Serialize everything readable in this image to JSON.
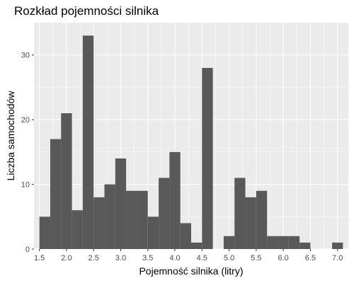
{
  "chart_data": {
    "type": "bar",
    "title": "Rozkład pojemności silnika",
    "xlabel": "Pojemność silnika (litry)",
    "ylabel": "Liczba samochodów",
    "xlim": [
      1.4,
      7.2
    ],
    "ylim": [
      0,
      35
    ],
    "grid": true,
    "bin_width": 0.2,
    "bins_start": [
      1.5,
      1.7,
      1.9,
      2.1,
      2.3,
      2.5,
      2.7,
      2.9,
      3.1,
      3.3,
      3.5,
      3.7,
      3.9,
      4.1,
      4.3,
      4.5,
      4.7,
      4.9,
      5.1,
      5.3,
      5.5,
      5.7,
      5.9,
      6.1,
      6.3,
      6.5,
      6.7,
      6.9
    ],
    "values": [
      5,
      17,
      21,
      6,
      33,
      8,
      10,
      14,
      9,
      9,
      5,
      11,
      15,
      4,
      1,
      28,
      0,
      2,
      11,
      8,
      9,
      2,
      2,
      2,
      1,
      0,
      0,
      1
    ],
    "x_ticks": [
      1.5,
      2.0,
      2.5,
      3.0,
      3.5,
      4.0,
      4.5,
      5.0,
      5.5,
      6.0,
      6.5,
      7.0
    ],
    "x_tick_labels": [
      "1.5",
      "2.0",
      "2.5",
      "3.0",
      "3.5",
      "4.0",
      "4.5",
      "5.0",
      "5.5",
      "6.0",
      "6.5",
      "7.0"
    ],
    "y_ticks": [
      0,
      10,
      20,
      30
    ],
    "y_tick_labels": [
      "0",
      "10",
      "20",
      "30"
    ],
    "colors": {
      "panel": "#ebebeb",
      "grid_major": "#ffffff",
      "bar": "#595959",
      "tick_text": "#4d4d4d"
    }
  }
}
